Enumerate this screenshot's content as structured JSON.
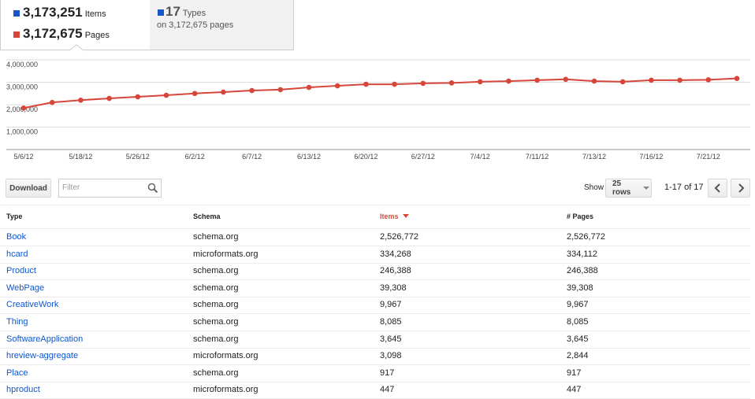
{
  "summary": {
    "items": {
      "value": "3,173,251",
      "label": "Items"
    },
    "pages": {
      "value": "3,172,675",
      "label": "Pages"
    },
    "types": {
      "value": "17",
      "label": "Types",
      "sub": "on 3,172,675 pages"
    }
  },
  "chart_data": {
    "type": "line",
    "categories": [
      "5/6/12",
      null,
      "5/18/12",
      null,
      "5/26/12",
      null,
      "6/2/12",
      null,
      "6/7/12",
      null,
      "6/13/12",
      null,
      "6/20/12",
      null,
      "6/27/12",
      null,
      "7/4/12",
      null,
      "7/11/12",
      null,
      "7/13/12",
      null,
      "7/16/12",
      null,
      "7/21/12",
      null
    ],
    "series": [
      {
        "color": "#d6463a",
        "values": [
          1850000,
          2100000,
          2200000,
          2280000,
          2350000,
          2420000,
          2500000,
          2560000,
          2630000,
          2670000,
          2770000,
          2840000,
          2910000,
          2910000,
          2950000,
          2970000,
          3020000,
          3050000,
          3090000,
          3130000,
          3050000,
          3020000,
          3090000,
          3090000,
          3110000,
          3170000
        ]
      }
    ],
    "ylim": [
      0,
      4000000
    ],
    "yticks": [
      {
        "value": 1000000,
        "label": "1,000,000"
      },
      {
        "value": 2000000,
        "label": "2,000,000"
      },
      {
        "value": 3000000,
        "label": "3,000,000"
      },
      {
        "value": 4000000,
        "label": "4,000,000"
      }
    ],
    "grid": true
  },
  "toolbar": {
    "download": "Download",
    "filter": "Filter",
    "show": "Show",
    "rows": "25 rows",
    "range": "1-17 of 17"
  },
  "table": {
    "columns": [
      "Type",
      "Schema",
      "Items",
      "# Pages"
    ],
    "rows": [
      [
        "Book",
        "schema.org",
        "2,526,772",
        "2,526,772"
      ],
      [
        "hcard",
        "microformats.org",
        "334,268",
        "334,112"
      ],
      [
        "Product",
        "schema.org",
        "246,388",
        "246,388"
      ],
      [
        "WebPage",
        "schema.org",
        "39,308",
        "39,308"
      ],
      [
        "CreativeWork",
        "schema.org",
        "9,967",
        "9,967"
      ],
      [
        "Thing",
        "schema.org",
        "8,085",
        "8,085"
      ],
      [
        "SoftwareApplication",
        "schema.org",
        "3,645",
        "3,645"
      ],
      [
        "hreview-aggregate",
        "microformats.org",
        "3,098",
        "2,844"
      ],
      [
        "Place",
        "schema.org",
        "917",
        "917"
      ],
      [
        "hproduct",
        "microformats.org",
        "447",
        "447"
      ]
    ]
  }
}
